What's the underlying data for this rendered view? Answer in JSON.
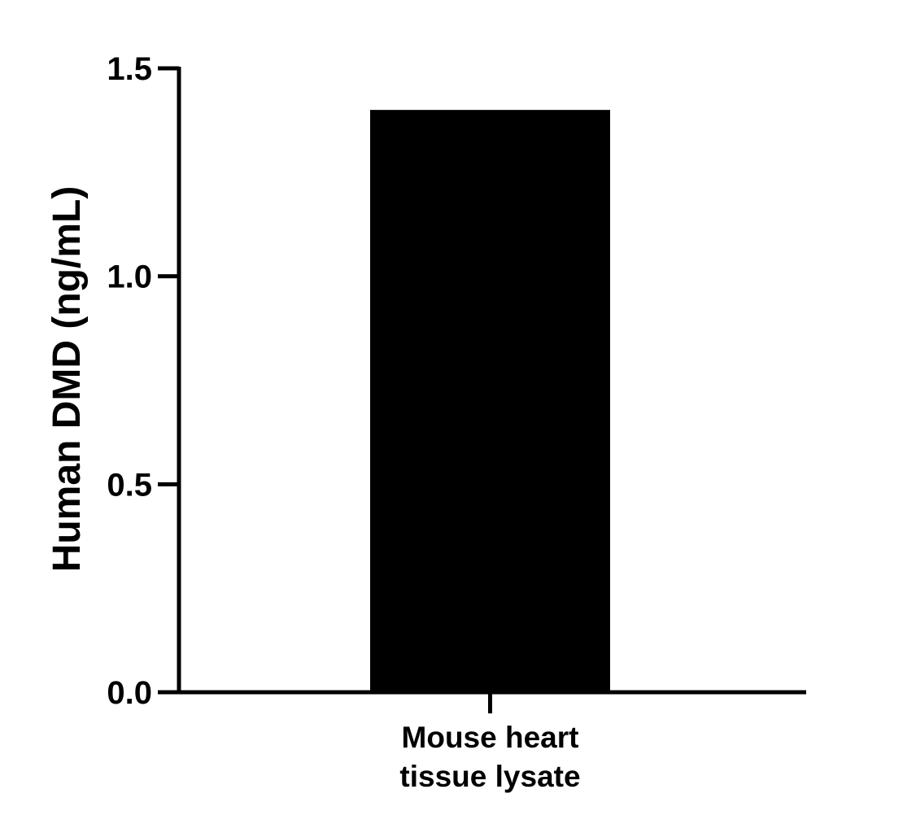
{
  "chart_data": {
    "type": "bar",
    "categories": [
      "Mouse heart tissue lysate"
    ],
    "category_label_lines": [
      [
        "Mouse heart",
        "tissue lysate"
      ]
    ],
    "values": [
      1.4
    ],
    "xlabel": "",
    "ylabel": "Human DMD (ng/mL)",
    "ylim": [
      0,
      1.5
    ],
    "yticks": [
      0.0,
      0.5,
      1.0,
      1.5
    ],
    "ytick_labels": [
      "0.0",
      "0.5",
      "1.0",
      "1.5"
    ],
    "grid": false,
    "bar_color": "#000000",
    "axis_color": "#000000"
  }
}
